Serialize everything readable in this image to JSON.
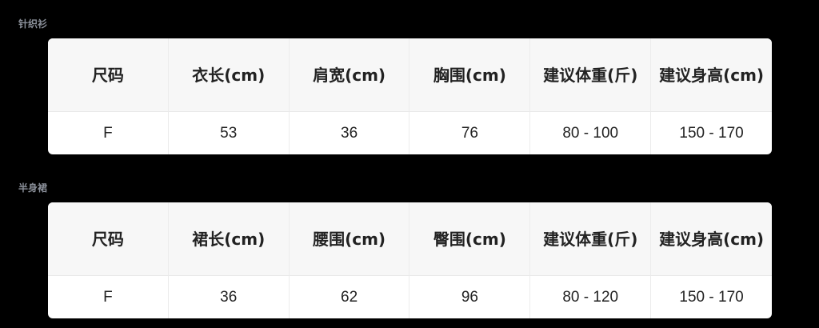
{
  "tables": [
    {
      "title": "针织衫",
      "headers": [
        "尺码",
        "衣长(cm)",
        "肩宽(cm)",
        "胸围(cm)",
        "建议体重(斤)",
        "建议身高(cm)"
      ],
      "rows": [
        [
          "F",
          "53",
          "36",
          "76",
          "80 - 100",
          "150 - 170"
        ]
      ]
    },
    {
      "title": "半身裙",
      "headers": [
        "尺码",
        "裙长(cm)",
        "腰围(cm)",
        "臀围(cm)",
        "建议体重(斤)",
        "建议身高(cm)"
      ],
      "rows": [
        [
          "F",
          "36",
          "62",
          "96",
          "80 - 120",
          "150 - 170"
        ]
      ]
    }
  ]
}
